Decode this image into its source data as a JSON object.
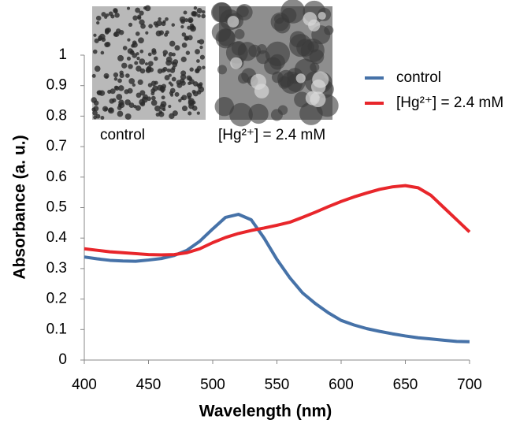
{
  "chart_data": {
    "type": "line",
    "xlabel": "Wavelength (nm)",
    "ylabel": "Absorbance (a. u.)",
    "x": [
      400,
      410,
      420,
      430,
      440,
      450,
      460,
      470,
      480,
      490,
      500,
      510,
      520,
      530,
      540,
      550,
      560,
      570,
      580,
      590,
      600,
      610,
      620,
      630,
      640,
      650,
      660,
      670,
      680,
      690,
      700
    ],
    "series": [
      {
        "name": "control",
        "color": "#4672a8",
        "values": [
          0.338,
          0.332,
          0.327,
          0.325,
          0.324,
          0.328,
          0.333,
          0.343,
          0.36,
          0.39,
          0.43,
          0.468,
          0.478,
          0.46,
          0.4,
          0.33,
          0.27,
          0.22,
          0.185,
          0.155,
          0.13,
          0.115,
          0.103,
          0.094,
          0.086,
          0.079,
          0.073,
          0.069,
          0.065,
          0.061,
          0.06
        ]
      },
      {
        "name": "[Hg²⁺] = 2.4 mM",
        "color": "#e8262b",
        "values": [
          0.365,
          0.36,
          0.355,
          0.352,
          0.349,
          0.346,
          0.345,
          0.346,
          0.352,
          0.365,
          0.385,
          0.402,
          0.415,
          0.425,
          0.433,
          0.442,
          0.452,
          0.468,
          0.485,
          0.503,
          0.52,
          0.535,
          0.548,
          0.56,
          0.568,
          0.572,
          0.565,
          0.54,
          0.5,
          0.46,
          0.42
        ]
      }
    ],
    "xlim": [
      400,
      700
    ],
    "xticks": [
      400,
      450,
      500,
      550,
      600,
      650,
      700
    ],
    "ylim": [
      0,
      1
    ],
    "yticks": [
      0,
      0.1,
      0.2,
      0.3,
      0.4,
      0.5,
      0.6,
      0.7,
      0.8,
      0.9,
      1
    ],
    "grid": false,
    "legend": "right",
    "annotations": [
      "control",
      "[Hg²⁺] = 2.4 mM"
    ]
  }
}
